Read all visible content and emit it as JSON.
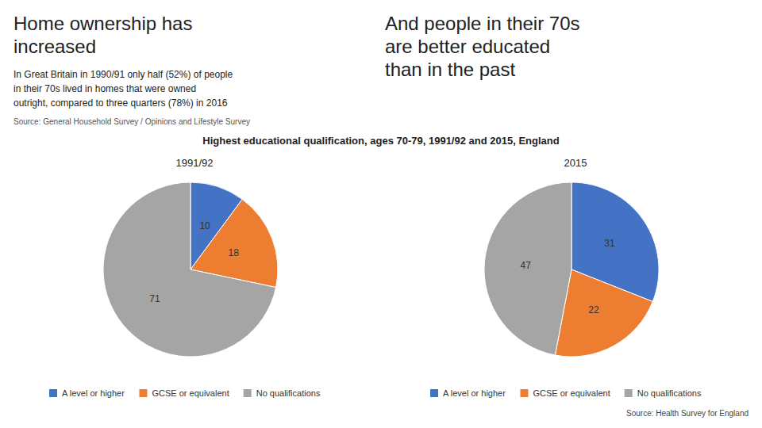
{
  "title": "Highest educational qualification, ages 70-79, 1991/92 and 2015, England",
  "annotations": [
    "Home ownership has\nincreased",
    "In Great Britain in 1990/91 only half (52%) of people\nin their 70s lived in homes that were owned\noutright, compared to three quarters (78%) in 2016",
    "Source: General Household Survey / Opinions and Lifestyle Survey",
    "And people in their 70s\nare better educated\nthan in the past",
    "Source: Health Survey for England"
  ],
  "chart_data": [
    {
      "type": "pie",
      "title": "1991/92",
      "categories": [
        "A level or higher",
        "GCSE or equivalent",
        "No qualifications"
      ],
      "values": [
        10,
        18,
        71
      ],
      "colors": [
        "#4472C4",
        "#ED7D31",
        "#A5A5A5"
      ],
      "data_labels": true,
      "legend": "bottom"
    },
    {
      "type": "pie",
      "title": "2015",
      "categories": [
        "A level or higher",
        "GCSE or equivalent",
        "No qualifications"
      ],
      "values": [
        31,
        22,
        47
      ],
      "colors": [
        "#4472C4",
        "#ED7D31",
        "#A5A5A5"
      ],
      "data_labels": true,
      "legend": "bottom"
    }
  ]
}
